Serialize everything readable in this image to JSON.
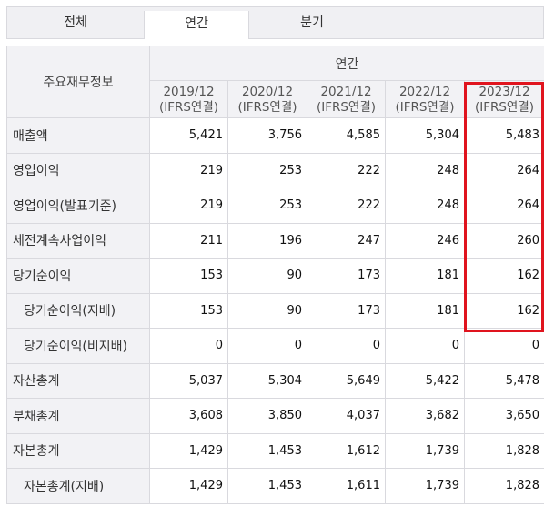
{
  "tabs": [
    "전체",
    "연간",
    "분기"
  ],
  "active_tab": 1,
  "table": {
    "header_label": "주요재무정보",
    "group_label": "연간",
    "periods": [
      {
        "year": "2019/12",
        "basis": "(IFRS연결)"
      },
      {
        "year": "2020/12",
        "basis": "(IFRS연결)"
      },
      {
        "year": "2021/12",
        "basis": "(IFRS연결)"
      },
      {
        "year": "2022/12",
        "basis": "(IFRS연결)"
      },
      {
        "year": "2023/12",
        "basis": "(IFRS연결)"
      }
    ],
    "rows": [
      {
        "label": "매출액",
        "indent": false,
        "values": [
          "5,421",
          "3,756",
          "4,585",
          "5,304",
          "5,483"
        ]
      },
      {
        "label": "영업이익",
        "indent": false,
        "values": [
          "219",
          "253",
          "222",
          "248",
          "264"
        ]
      },
      {
        "label": "영업이익(발표기준)",
        "indent": false,
        "values": [
          "219",
          "253",
          "222",
          "248",
          "264"
        ]
      },
      {
        "label": "세전계속사업이익",
        "indent": false,
        "values": [
          "211",
          "196",
          "247",
          "246",
          "260"
        ]
      },
      {
        "label": "당기순이익",
        "indent": false,
        "values": [
          "153",
          "90",
          "173",
          "181",
          "162"
        ]
      },
      {
        "label": "당기순이익(지배)",
        "indent": true,
        "values": [
          "153",
          "90",
          "173",
          "181",
          "162"
        ]
      },
      {
        "label": "당기순이익(비지배)",
        "indent": true,
        "values": [
          "0",
          "0",
          "0",
          "0",
          "0"
        ]
      },
      {
        "label": "자산총계",
        "indent": false,
        "values": [
          "5,037",
          "5,304",
          "5,649",
          "5,422",
          "5,478"
        ]
      },
      {
        "label": "부채총계",
        "indent": false,
        "values": [
          "3,608",
          "3,850",
          "4,037",
          "3,682",
          "3,650"
        ]
      },
      {
        "label": "자본총계",
        "indent": false,
        "values": [
          "1,429",
          "1,453",
          "1,612",
          "1,739",
          "1,828"
        ]
      },
      {
        "label": "자본총계(지배)",
        "indent": true,
        "values": [
          "1,429",
          "1,453",
          "1,611",
          "1,739",
          "1,828"
        ]
      }
    ]
  },
  "highlight_color": "#e0141e"
}
